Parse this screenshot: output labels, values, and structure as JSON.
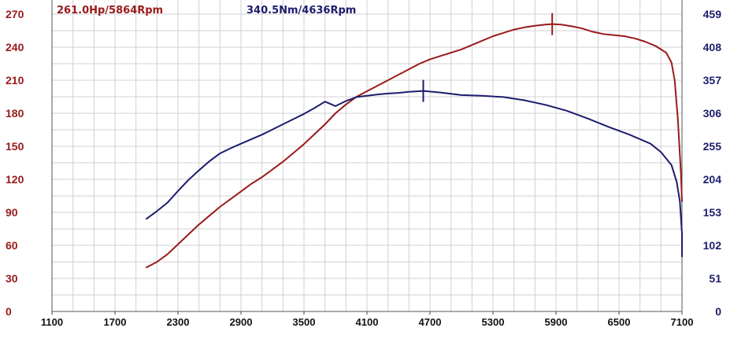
{
  "chart_data": {
    "type": "line",
    "x_ticks": [
      "1100",
      "1700",
      "2300",
      "2900",
      "3500",
      "4100",
      "4700",
      "5300",
      "5900",
      "6500",
      "7100"
    ],
    "x_range": [
      1100,
      7100
    ],
    "y_left_ticks": [
      "0",
      "30",
      "60",
      "90",
      "120",
      "150",
      "180",
      "210",
      "240",
      "270"
    ],
    "y_left_range": [
      0,
      270
    ],
    "y_right_ticks": [
      "0",
      "51",
      "102",
      "153",
      "204",
      "255",
      "306",
      "357",
      "408",
      "459"
    ],
    "y_right_range": [
      0,
      459
    ],
    "grid": true,
    "annotations": {
      "power_peak": "261.0Hp/5864Rpm",
      "torque_peak": "340.5Nm/4636Rpm"
    },
    "series": [
      {
        "axis": "left",
        "color": "#9a1a1a",
        "peak": {
          "x": 5864,
          "y": 261.0
        },
        "points": [
          [
            2000,
            40
          ],
          [
            2100,
            45
          ],
          [
            2200,
            52
          ],
          [
            2300,
            61
          ],
          [
            2400,
            70
          ],
          [
            2500,
            79
          ],
          [
            2600,
            87
          ],
          [
            2700,
            95
          ],
          [
            2800,
            102
          ],
          [
            2900,
            109
          ],
          [
            3000,
            116
          ],
          [
            3100,
            122
          ],
          [
            3200,
            129
          ],
          [
            3300,
            136
          ],
          [
            3400,
            144
          ],
          [
            3500,
            152
          ],
          [
            3600,
            161
          ],
          [
            3700,
            170
          ],
          [
            3800,
            180
          ],
          [
            3900,
            188
          ],
          [
            4000,
            195
          ],
          [
            4100,
            200
          ],
          [
            4200,
            205
          ],
          [
            4300,
            210
          ],
          [
            4400,
            215
          ],
          [
            4500,
            220
          ],
          [
            4600,
            225
          ],
          [
            4700,
            229
          ],
          [
            4800,
            232
          ],
          [
            4900,
            235
          ],
          [
            5000,
            238
          ],
          [
            5100,
            242
          ],
          [
            5200,
            246
          ],
          [
            5300,
            250
          ],
          [
            5400,
            253
          ],
          [
            5500,
            256
          ],
          [
            5600,
            258
          ],
          [
            5700,
            259.5
          ],
          [
            5800,
            260.5
          ],
          [
            5864,
            261
          ],
          [
            5950,
            260.5
          ],
          [
            6050,
            259
          ],
          [
            6150,
            257
          ],
          [
            6250,
            254
          ],
          [
            6350,
            252
          ],
          [
            6450,
            251
          ],
          [
            6550,
            250
          ],
          [
            6650,
            248
          ],
          [
            6750,
            245
          ],
          [
            6850,
            241
          ],
          [
            6950,
            235
          ],
          [
            7000,
            226
          ],
          [
            7030,
            210
          ],
          [
            7060,
            175
          ],
          [
            7090,
            125
          ],
          [
            7100,
            100
          ]
        ]
      },
      {
        "axis": "right",
        "color": "#1c1c6e",
        "peak": {
          "x": 4636,
          "y": 340.5
        },
        "points": [
          [
            2000,
            143
          ],
          [
            2100,
            155
          ],
          [
            2200,
            168
          ],
          [
            2300,
            186
          ],
          [
            2400,
            203
          ],
          [
            2500,
            218
          ],
          [
            2600,
            232
          ],
          [
            2700,
            244
          ],
          [
            2800,
            252
          ],
          [
            2900,
            259
          ],
          [
            3000,
            266
          ],
          [
            3100,
            273
          ],
          [
            3200,
            281
          ],
          [
            3300,
            289
          ],
          [
            3400,
            297
          ],
          [
            3500,
            305
          ],
          [
            3600,
            314
          ],
          [
            3700,
            324
          ],
          [
            3800,
            317
          ],
          [
            3900,
            325
          ],
          [
            4000,
            331
          ],
          [
            4100,
            333
          ],
          [
            4200,
            335
          ],
          [
            4300,
            336.5
          ],
          [
            4400,
            337.5
          ],
          [
            4500,
            339
          ],
          [
            4636,
            340.5
          ],
          [
            4800,
            338
          ],
          [
            5000,
            334
          ],
          [
            5200,
            333
          ],
          [
            5400,
            331
          ],
          [
            5600,
            326
          ],
          [
            5800,
            319
          ],
          [
            6000,
            310
          ],
          [
            6200,
            298
          ],
          [
            6400,
            285
          ],
          [
            6600,
            273
          ],
          [
            6800,
            259
          ],
          [
            6900,
            246
          ],
          [
            7000,
            226
          ],
          [
            7050,
            200
          ],
          [
            7080,
            170
          ],
          [
            7100,
            120
          ],
          [
            7100,
            85
          ]
        ]
      }
    ]
  }
}
